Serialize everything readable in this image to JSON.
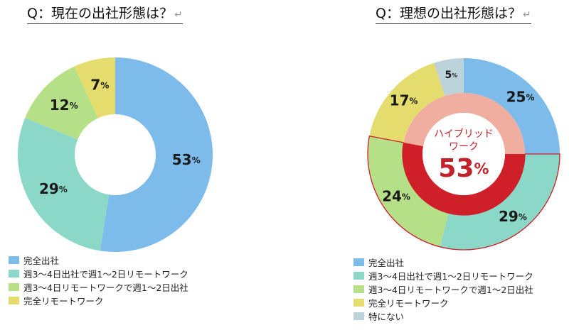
{
  "colors": {
    "complete_office": "#7cbbea",
    "office_3_4": "#8bd8c8",
    "remote_3_4": "#b5e087",
    "complete_remote": "#e4dc6c",
    "none": "#bdd3dc",
    "hybrid_ring": "#cf1f28",
    "hybrid_inner": "#f0aea0",
    "hybrid_text": "#c2222a"
  },
  "chart_data": [
    {
      "type": "pie",
      "title": "Q：現在の出社形態は？",
      "categories": [
        "完全出社",
        "週3〜4日出社で週1〜2日リモートワーク",
        "週3〜4日リモートワークで週1〜2日出社",
        "完全リモートワーク"
      ],
      "values": [
        53,
        29,
        12,
        7
      ],
      "labels": [
        "53",
        "29",
        "12",
        "7"
      ],
      "unit": "%",
      "legend": "bottom-left"
    },
    {
      "type": "pie",
      "title": "Q：理想の出社形態は？",
      "categories": [
        "完全出社",
        "週3〜4日出社で週1〜2日リモートワーク",
        "週3〜4日リモートワークで週1〜2日出社",
        "完全リモートワーク",
        "特にない"
      ],
      "values": [
        25,
        29,
        24,
        17,
        5
      ],
      "labels": [
        "25",
        "29",
        "24",
        "17",
        "5"
      ],
      "unit": "%",
      "legend": "bottom-left",
      "annotation": {
        "label_line1": "ハイブリッド",
        "label_line2": "ワーク",
        "value": "53",
        "unit": "%",
        "includes": [
          "週3〜4日出社で週1〜2日リモートワーク",
          "週3〜4日リモートワークで週1〜2日出社"
        ]
      }
    }
  ]
}
